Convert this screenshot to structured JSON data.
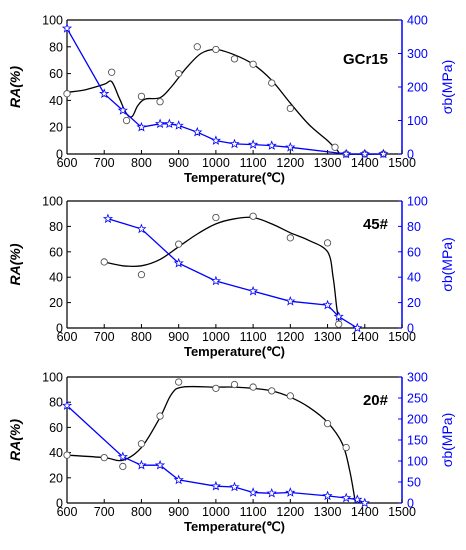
{
  "chart_data": [
    {
      "type": "line",
      "title": "GCr15",
      "xlabel": "Temperature(℃)",
      "ylabel": "RA(%)",
      "y2label": "σb(MPa)",
      "xlim": [
        600,
        1500
      ],
      "ylim": [
        0,
        100
      ],
      "y2lim": [
        0,
        400
      ],
      "xticks": [
        600,
        700,
        800,
        900,
        1000,
        1100,
        1200,
        1300,
        1400,
        1500
      ],
      "yticks": [
        0,
        20,
        40,
        60,
        80,
        100
      ],
      "y2ticks": [
        0,
        100,
        200,
        300,
        400
      ],
      "series": [
        {
          "axis": "left",
          "marker": "circle",
          "color": "#000000",
          "points": [
            [
              600,
              45
            ],
            [
              720,
              61
            ],
            [
              760,
              25
            ],
            [
              800,
              43
            ],
            [
              850,
              39
            ],
            [
              900,
              60
            ],
            [
              950,
              80
            ],
            [
              1000,
              78
            ],
            [
              1050,
              71
            ],
            [
              1100,
              67
            ],
            [
              1150,
              53
            ],
            [
              1200,
              34
            ],
            [
              1320,
              5
            ],
            [
              1350,
              0
            ],
            [
              1400,
              0
            ],
            [
              1450,
              0
            ]
          ],
          "curve": [
            [
              600,
              46
            ],
            [
              650,
              48
            ],
            [
              700,
              52
            ],
            [
              720,
              54
            ],
            [
              740,
              42
            ],
            [
              760,
              30
            ],
            [
              775,
              28
            ],
            [
              790,
              36
            ],
            [
              810,
              41
            ],
            [
              850,
              42
            ],
            [
              880,
              50
            ],
            [
              920,
              64
            ],
            [
              960,
              75
            ],
            [
              1000,
              78
            ],
            [
              1050,
              74
            ],
            [
              1100,
              67
            ],
            [
              1150,
              55
            ],
            [
              1200,
              38
            ],
            [
              1250,
              22
            ],
            [
              1300,
              10
            ],
            [
              1325,
              3
            ],
            [
              1345,
              0
            ],
            [
              1450,
              0
            ]
          ]
        },
        {
          "axis": "right",
          "marker": "star",
          "color": "#0000ff",
          "points": [
            [
              600,
              375
            ],
            [
              700,
              180
            ],
            [
              750,
              130
            ],
            [
              800,
              80
            ],
            [
              850,
              90
            ],
            [
              875,
              90
            ],
            [
              900,
              85
            ],
            [
              950,
              65
            ],
            [
              1000,
              40
            ],
            [
              1050,
              30
            ],
            [
              1100,
              28
            ],
            [
              1150,
              25
            ],
            [
              1200,
              20
            ],
            [
              1350,
              0
            ],
            [
              1400,
              0
            ],
            [
              1450,
              0
            ]
          ]
        }
      ]
    },
    {
      "type": "line",
      "title": "45#",
      "xlabel": "Temperature(℃)",
      "ylabel": "RA(%)",
      "y2label": "σb(MPa)",
      "xlim": [
        600,
        1500
      ],
      "ylim": [
        0,
        100
      ],
      "y2lim": [
        0,
        100
      ],
      "xticks": [
        600,
        700,
        800,
        900,
        1000,
        1100,
        1200,
        1300,
        1400,
        1500
      ],
      "yticks": [
        0,
        20,
        40,
        60,
        80,
        100
      ],
      "y2ticks": [
        0,
        20,
        40,
        60,
        80,
        100
      ],
      "series": [
        {
          "axis": "left",
          "marker": "circle",
          "color": "#000000",
          "points": [
            [
              700,
              52
            ],
            [
              800,
              42
            ],
            [
              900,
              66
            ],
            [
              1000,
              87
            ],
            [
              1100,
              88
            ],
            [
              1200,
              71
            ],
            [
              1300,
              67
            ],
            [
              1330,
              3
            ]
          ],
          "curve": [
            [
              700,
              52
            ],
            [
              750,
              49
            ],
            [
              800,
              49
            ],
            [
              850,
              54
            ],
            [
              900,
              64
            ],
            [
              950,
              74
            ],
            [
              1000,
              82
            ],
            [
              1050,
              86
            ],
            [
              1100,
              87
            ],
            [
              1150,
              82
            ],
            [
              1200,
              75
            ],
            [
              1250,
              69
            ],
            [
              1300,
              60
            ],
            [
              1315,
              40
            ],
            [
              1325,
              15
            ],
            [
              1332,
              3
            ]
          ]
        },
        {
          "axis": "right",
          "marker": "star",
          "color": "#0000ff",
          "points": [
            [
              710,
              86
            ],
            [
              800,
              78
            ],
            [
              900,
              51
            ],
            [
              1000,
              37
            ],
            [
              1100,
              29
            ],
            [
              1200,
              21
            ],
            [
              1300,
              18
            ],
            [
              1330,
              9
            ],
            [
              1380,
              0
            ]
          ]
        }
      ]
    },
    {
      "type": "line",
      "title": "20#",
      "xlabel": "Temperature(℃)",
      "ylabel": "RA(%)",
      "y2label": "σb(MPa)",
      "xlim": [
        600,
        1500
      ],
      "ylim": [
        0,
        100
      ],
      "y2lim": [
        0,
        300
      ],
      "xticks": [
        600,
        700,
        800,
        900,
        1000,
        1100,
        1200,
        1300,
        1400,
        1500
      ],
      "yticks": [
        0,
        20,
        40,
        60,
        80,
        100
      ],
      "y2ticks": [
        0,
        50,
        100,
        150,
        200,
        250,
        300
      ],
      "series": [
        {
          "axis": "left",
          "marker": "circle",
          "color": "#000000",
          "points": [
            [
              600,
              38
            ],
            [
              700,
              36
            ],
            [
              750,
              29
            ],
            [
              800,
              47
            ],
            [
              850,
              69
            ],
            [
              900,
              96
            ],
            [
              1000,
              91
            ],
            [
              1050,
              94
            ],
            [
              1100,
              92
            ],
            [
              1150,
              89
            ],
            [
              1200,
              85
            ],
            [
              1300,
              63
            ],
            [
              1350,
              44
            ]
          ],
          "curve": [
            [
              600,
              38
            ],
            [
              700,
              36
            ],
            [
              750,
              34
            ],
            [
              800,
              44
            ],
            [
              850,
              68
            ],
            [
              880,
              86
            ],
            [
              910,
              92
            ],
            [
              1000,
              92
            ],
            [
              1050,
              92
            ],
            [
              1100,
              91
            ],
            [
              1150,
              89
            ],
            [
              1200,
              84
            ],
            [
              1250,
              76
            ],
            [
              1300,
              64
            ],
            [
              1340,
              47
            ],
            [
              1360,
              25
            ],
            [
              1375,
              0
            ]
          ]
        },
        {
          "axis": "right",
          "marker": "star",
          "color": "#0000ff",
          "points": [
            [
              600,
              232
            ],
            [
              750,
              110
            ],
            [
              800,
              90
            ],
            [
              850,
              90
            ],
            [
              900,
              55
            ],
            [
              1000,
              40
            ],
            [
              1050,
              38
            ],
            [
              1100,
              25
            ],
            [
              1150,
              23
            ],
            [
              1200,
              25
            ],
            [
              1300,
              17
            ],
            [
              1350,
              12
            ],
            [
              1380,
              8
            ],
            [
              1400,
              0
            ]
          ]
        }
      ]
    }
  ]
}
